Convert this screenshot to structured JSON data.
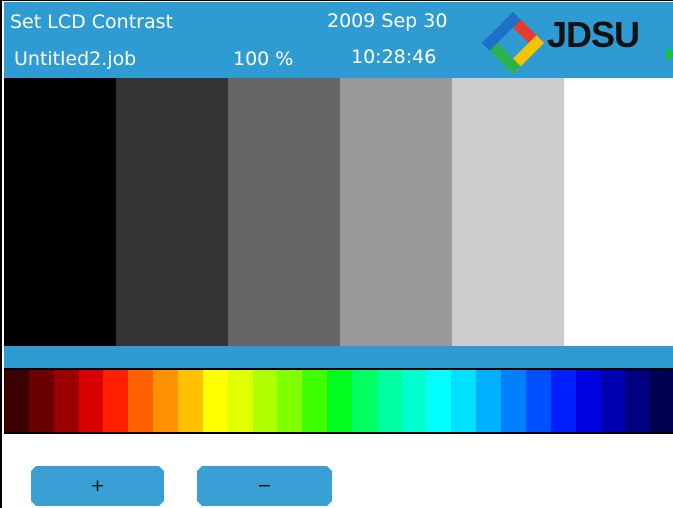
{
  "header": {
    "title": "Set LCD Contrast",
    "job": "Untitled2.job",
    "percent": "100 %",
    "date": "2009 Sep 30",
    "time": "10:28:46",
    "logo_text": "JDSU",
    "logo_colors": [
      "#e63b2e",
      "#f5c400",
      "#2bb24c",
      "#1e6fc8"
    ],
    "accent": "#2f9bd3"
  },
  "gray_bars": [
    "#000000",
    "#333333",
    "#666666",
    "#999999",
    "#cccccc",
    "#ffffff"
  ],
  "spectrum": [
    "#3d0000",
    "#6a0000",
    "#9a0000",
    "#d80000",
    "#ff2000",
    "#ff6000",
    "#ff9000",
    "#ffc000",
    "#ffff00",
    "#e0ff00",
    "#b0ff00",
    "#80ff00",
    "#40ff00",
    "#00ff20",
    "#00ff60",
    "#00ffa0",
    "#00ffd0",
    "#00ffff",
    "#00e0ff",
    "#00b0ff",
    "#0080ff",
    "#0050ff",
    "#0020ff",
    "#0000e0",
    "#0000b0",
    "#000080",
    "#000050"
  ],
  "buttons": {
    "plus_label": "+",
    "minus_label": "−"
  }
}
